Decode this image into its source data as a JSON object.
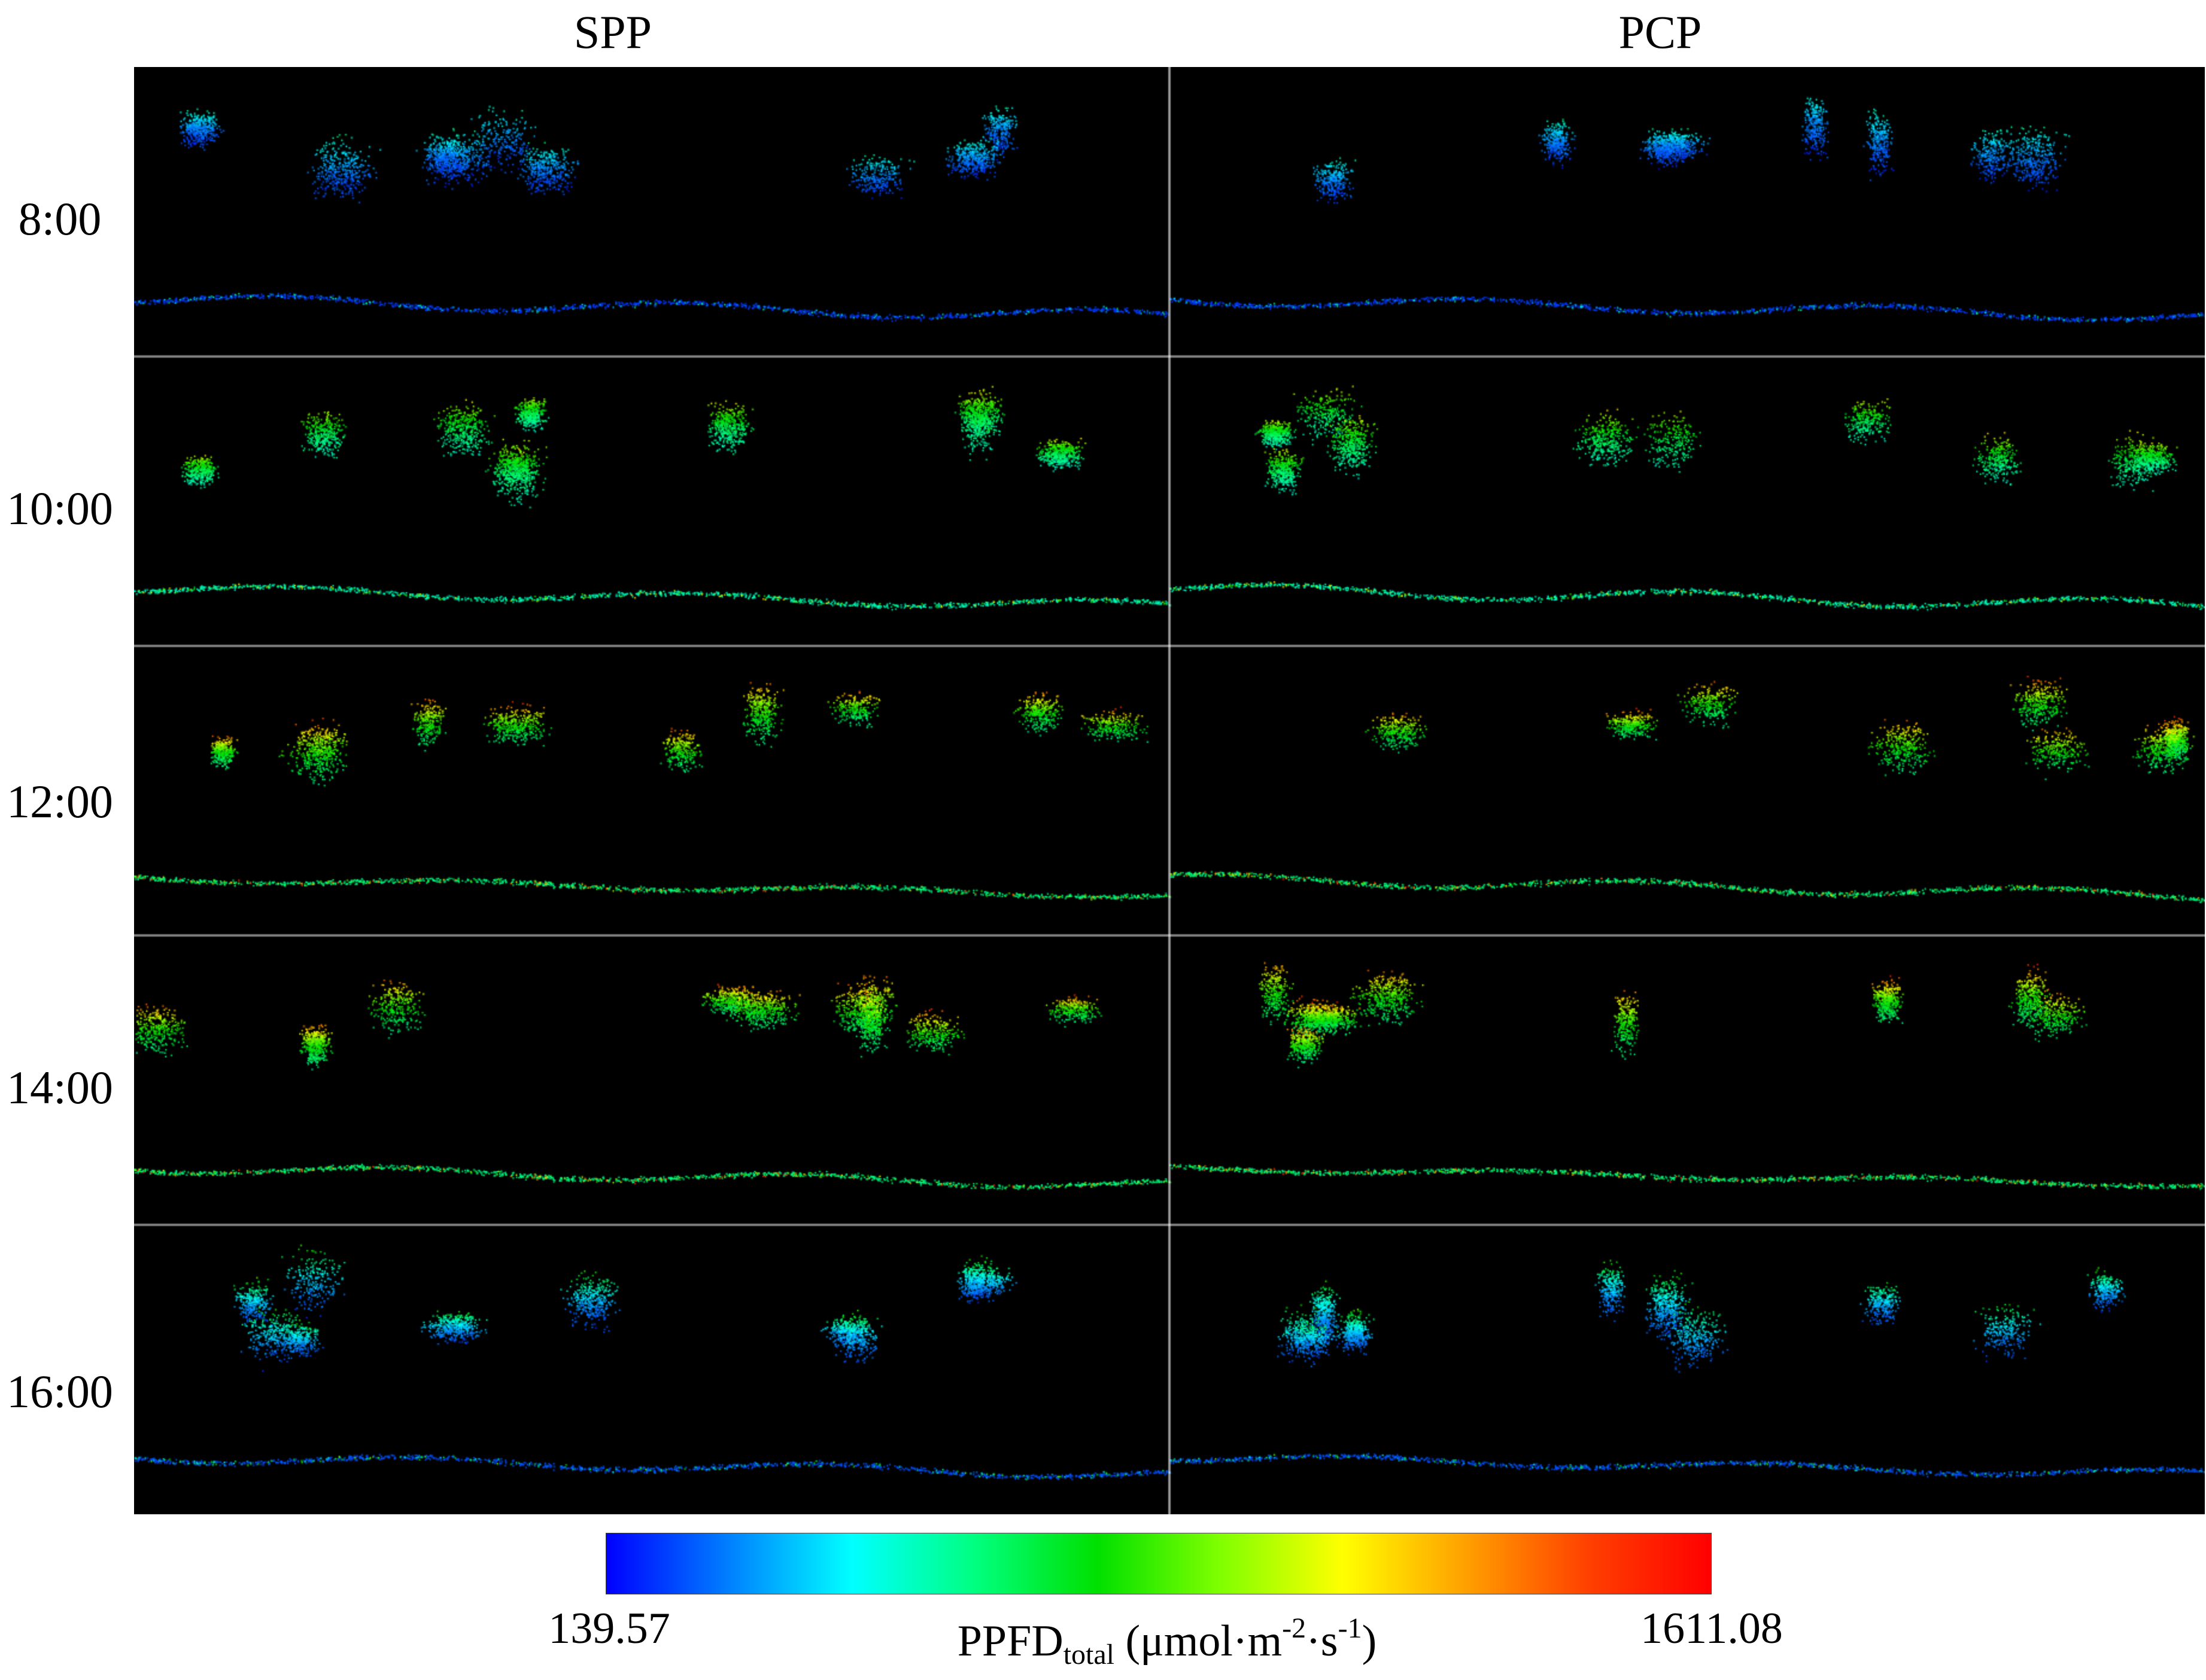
{
  "columns": [
    "SPP",
    "PCP"
  ],
  "rows": [
    "8:00",
    "10:00",
    "12:00",
    "14:00",
    "16:00"
  ],
  "colorbar": {
    "min_label": "139.57",
    "max_label": "1611.08",
    "quantity": "PPFD",
    "quantity_sub": "total",
    "unit_open": " (μmol·m",
    "exp1": "-2",
    "unit_mid": "·s",
    "exp2": "-1",
    "unit_close": ")",
    "stops": [
      "#0000ff",
      "#0080ff",
      "#00ffff",
      "#00ff80",
      "#00e000",
      "#80ff00",
      "#ffff00",
      "#ffa000",
      "#ff4000",
      "#ff0000"
    ]
  },
  "colors": {
    "background": "#000000",
    "divider": "#ffffff"
  }
}
